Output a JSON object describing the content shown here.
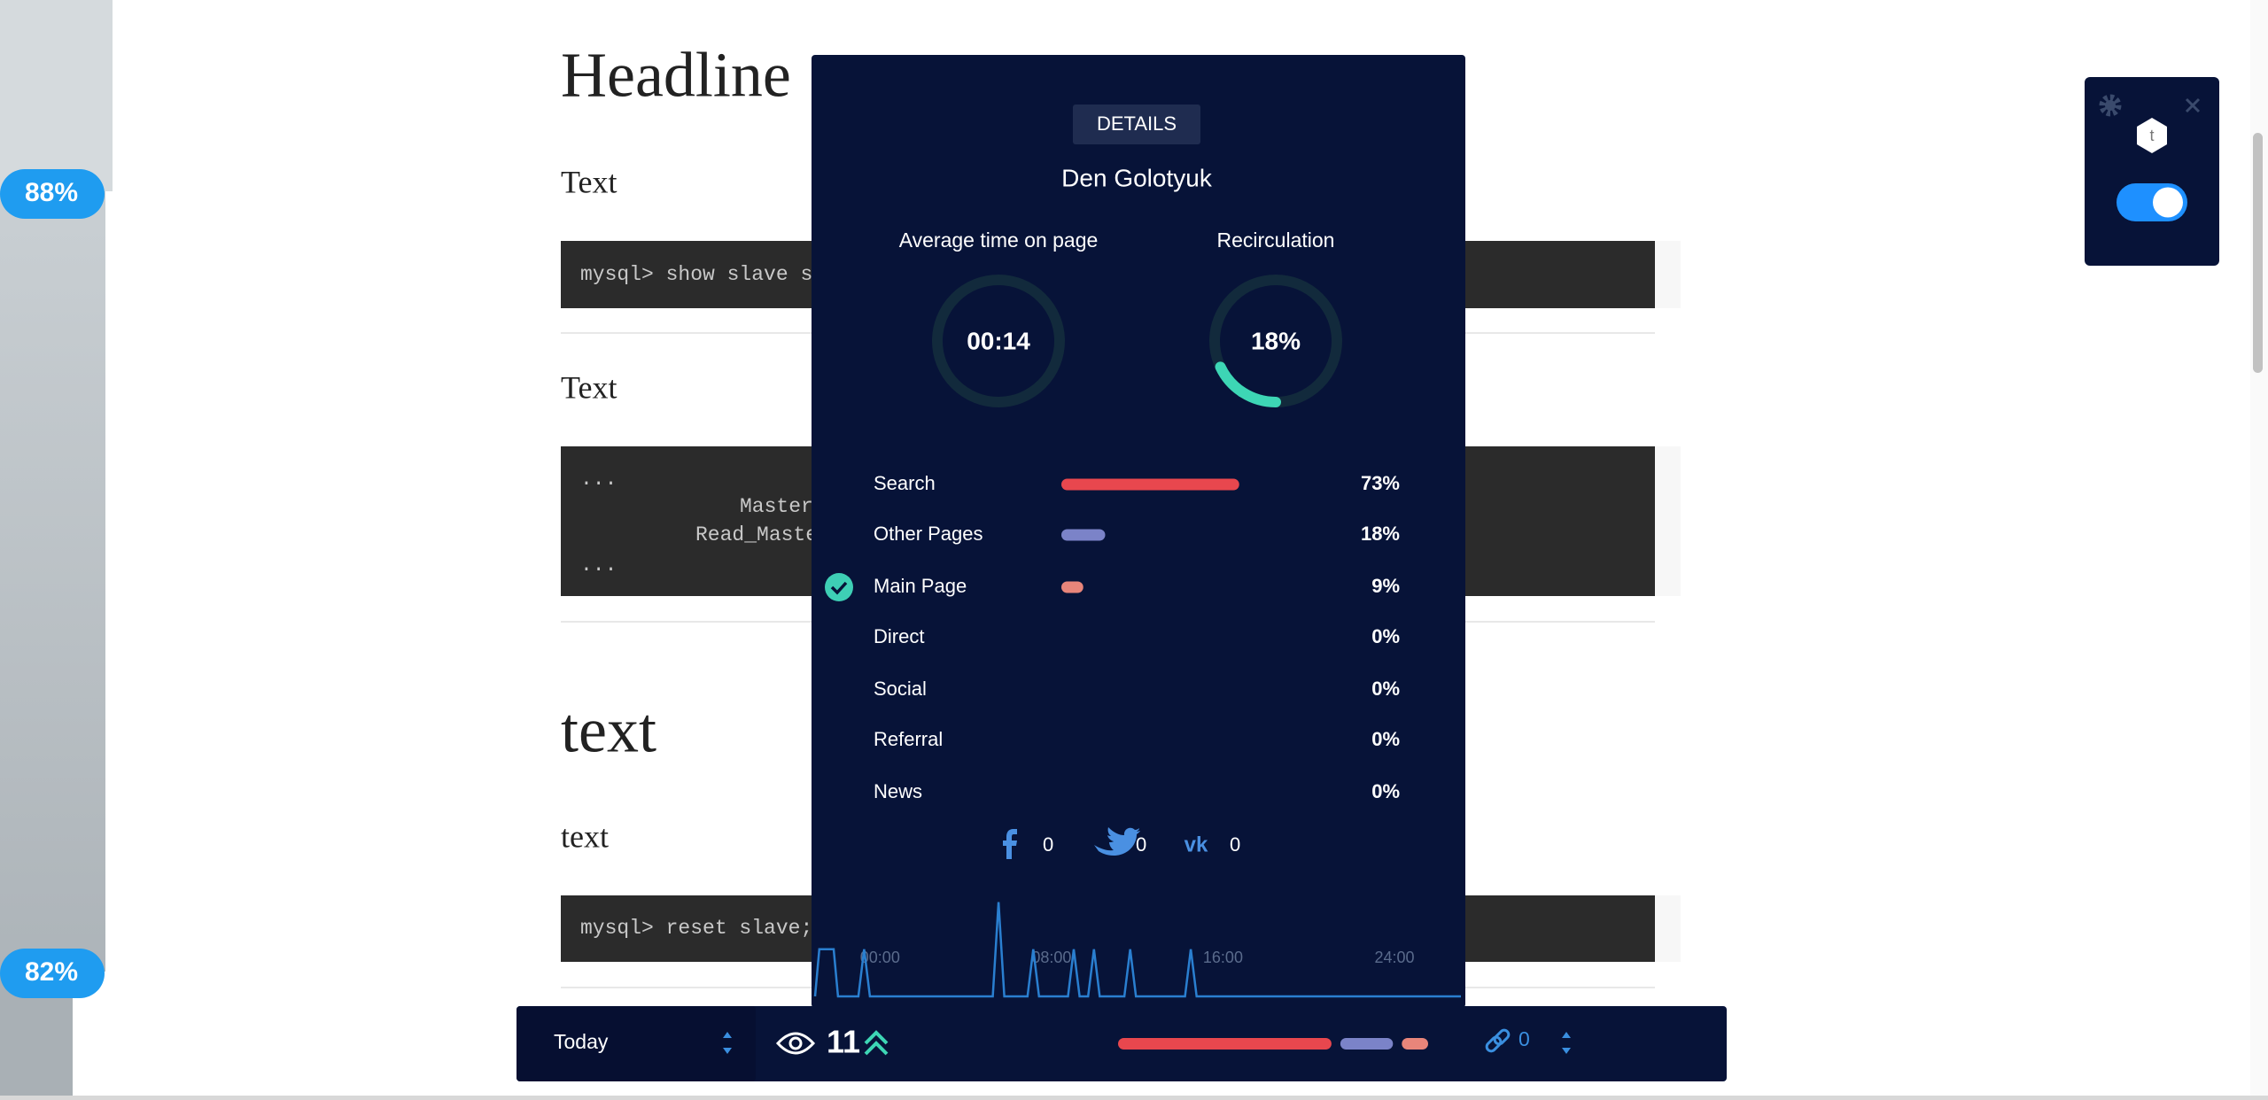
{
  "article": {
    "headline": "Headline",
    "sections": [
      {
        "paragraph": "Text",
        "code": [
          "mysql> show slave st"
        ]
      },
      {
        "paragraph": "Text",
        "code": [
          "...",
          "Master_",
          "Read_Maste",
          "..."
        ]
      },
      {
        "heading": "text",
        "paragraph": "text",
        "code": [
          "mysql> reset slave;"
        ]
      }
    ]
  },
  "scroll_markers": [
    "88%",
    "82%"
  ],
  "details_panel": {
    "button": "DETAILS",
    "author": "Den Golotyuk",
    "avg_time": {
      "title": "Average time on page",
      "value": "00:14"
    },
    "recirculation": {
      "title": "Recirculation",
      "value": 18,
      "label": "18%",
      "color": "#3dd6b5"
    },
    "sources": [
      {
        "name": "Search",
        "value": 73,
        "label": "73%",
        "color": "#e8474e"
      },
      {
        "name": "Other Pages",
        "value": 18,
        "label": "18%",
        "color": "#7b83c8"
      },
      {
        "name": "Main Page",
        "value": 9,
        "label": "9%",
        "color": "#e8857a",
        "current": true
      },
      {
        "name": "Direct",
        "value": 0,
        "label": "0%"
      },
      {
        "name": "Social",
        "value": 0,
        "label": "0%"
      },
      {
        "name": "Referral",
        "value": 0,
        "label": "0%"
      },
      {
        "name": "News",
        "value": 0,
        "label": "0%"
      }
    ],
    "social_counts": [
      0,
      0,
      0
    ],
    "timeline": {
      "x": [
        -3.03,
        -2.83,
        -2.16,
        -1.96,
        -1.01,
        -0.74,
        -0.47,
        5.26,
        5.53,
        5.8,
        6.88,
        7.15,
        7.42,
        8.77,
        9.04,
        9.31,
        9.71,
        9.98,
        10.25,
        11.4,
        11.67,
        11.94,
        14.23,
        14.5,
        14.77,
        27.1
      ],
      "values": [
        0,
        1,
        1,
        0,
        0,
        1,
        0,
        0,
        2,
        0,
        0,
        1,
        0,
        0,
        1,
        0,
        0,
        1,
        0,
        0,
        1,
        0,
        0,
        1,
        0,
        0
      ],
      "xlim": [
        -3.03,
        27.1
      ],
      "ylim": [
        0,
        2.2
      ],
      "xticks": [
        {
          "value": 0,
          "label": "00:00"
        },
        {
          "value": 8,
          "label": "08:00"
        },
        {
          "value": 16,
          "label": "16:00"
        },
        {
          "value": 24,
          "label": "24:00"
        }
      ],
      "color": "#2a7fd0"
    }
  },
  "bottom_bar": {
    "period": "Today",
    "views": 11,
    "links": 0
  }
}
